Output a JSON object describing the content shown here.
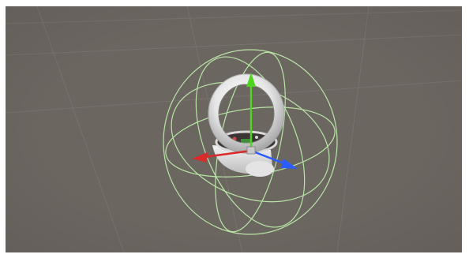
{
  "scene": {
    "background_color": "#6c6661",
    "grid_line_color": "#7a7570",
    "selected_object": {
      "icon": "ring-mesh-icon",
      "color": "#ececec",
      "collider_color": "#b9e6a6"
    },
    "gizmo": {
      "icon": "move-tool-gizmo-icon",
      "axes": [
        {
          "axis": "x",
          "color": "#d92b2b"
        },
        {
          "axis": "y",
          "color": "#4fd41f"
        },
        {
          "axis": "z",
          "color": "#2b5cff"
        }
      ]
    }
  }
}
